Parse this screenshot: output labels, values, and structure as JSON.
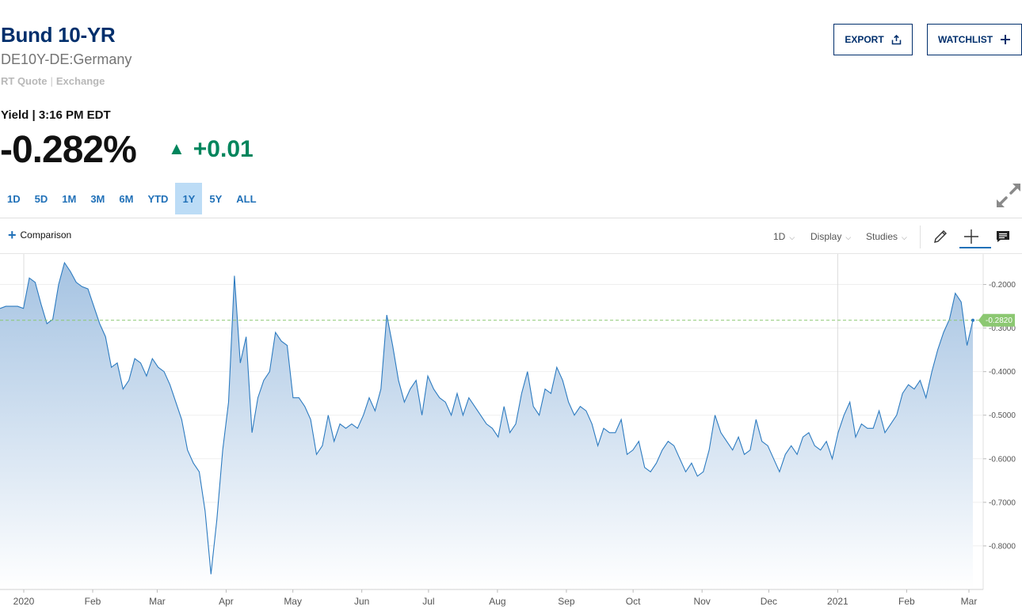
{
  "header": {
    "title": "Bund 10-YR",
    "symbol": "DE10Y-DE:Germany",
    "quote_type": "RT Quote",
    "quote_separator": "|",
    "quote_exchange": "Exchange",
    "yield_line": "Yield | 3:16 PM EDT",
    "price": "-0.282%",
    "change": "+0.01",
    "change_direction": "up",
    "change_color": "#00855c",
    "title_color": "#002f6c"
  },
  "actions": {
    "export_label": "EXPORT",
    "export_icon": "share-upload-icon",
    "watchlist_label": "WATCHLIST",
    "watchlist_icon": "plus-icon"
  },
  "range_tabs": [
    "1D",
    "5D",
    "1M",
    "3M",
    "6M",
    "YTD",
    "1Y",
    "5Y",
    "ALL"
  ],
  "active_range": "1Y",
  "toolbar": {
    "comparison_label": "Comparison",
    "interval_label": "1D",
    "display_label": "Display",
    "studies_label": "Studies",
    "tools": [
      "pencil-icon",
      "crosshair-icon",
      "comment-icon"
    ],
    "active_tool": "crosshair-icon",
    "expand_icon": "expand-icon"
  },
  "chart_data": {
    "type": "area",
    "series": [
      {
        "values": [
          -0.255,
          -0.25,
          -0.25,
          -0.25,
          -0.255,
          -0.185,
          -0.195,
          -0.245,
          -0.29,
          -0.28,
          -0.2,
          -0.15,
          -0.17,
          -0.195,
          -0.205,
          -0.21,
          -0.25,
          -0.29,
          -0.32,
          -0.39,
          -0.38,
          -0.44,
          -0.42,
          -0.37,
          -0.38,
          -0.41,
          -0.37,
          -0.39,
          -0.4,
          -0.43,
          -0.47,
          -0.51,
          -0.58,
          -0.61,
          -0.63,
          -0.72,
          -0.865,
          -0.74,
          -0.58,
          -0.47,
          -0.18,
          -0.38,
          -0.32,
          -0.54,
          -0.46,
          -0.42,
          -0.4,
          -0.31,
          -0.33,
          -0.34,
          -0.46,
          -0.46,
          -0.48,
          -0.51,
          -0.59,
          -0.57,
          -0.5,
          -0.56,
          -0.52,
          -0.53,
          -0.52,
          -0.53,
          -0.5,
          -0.46,
          -0.49,
          -0.44,
          -0.27,
          -0.34,
          -0.42,
          -0.47,
          -0.44,
          -0.42,
          -0.5,
          -0.41,
          -0.44,
          -0.46,
          -0.47,
          -0.5,
          -0.45,
          -0.5,
          -0.46,
          -0.48,
          -0.5,
          -0.52,
          -0.53,
          -0.55,
          -0.48,
          -0.54,
          -0.52,
          -0.45,
          -0.4,
          -0.48,
          -0.5,
          -0.44,
          -0.45,
          -0.39,
          -0.42,
          -0.47,
          -0.5,
          -0.48,
          -0.49,
          -0.52,
          -0.57,
          -0.53,
          -0.54,
          -0.54,
          -0.51,
          -0.59,
          -0.58,
          -0.56,
          -0.62,
          -0.63,
          -0.61,
          -0.58,
          -0.56,
          -0.57,
          -0.6,
          -0.63,
          -0.61,
          -0.64,
          -0.63,
          -0.58,
          -0.5,
          -0.54,
          -0.56,
          -0.58,
          -0.55,
          -0.59,
          -0.58,
          -0.51,
          -0.56,
          -0.57,
          -0.6,
          -0.63,
          -0.59,
          -0.57,
          -0.59,
          -0.55,
          -0.54,
          -0.57,
          -0.58,
          -0.56,
          -0.6,
          -0.54,
          -0.5,
          -0.47,
          -0.55,
          -0.52,
          -0.53,
          -0.53,
          -0.49,
          -0.54,
          -0.52,
          -0.5,
          -0.45,
          -0.43,
          -0.44,
          -0.42,
          -0.46,
          -0.4,
          -0.35,
          -0.31,
          -0.28,
          -0.22,
          -0.24,
          -0.34,
          -0.282
        ]
      }
    ],
    "x_tick_labels": [
      "2020",
      "Feb",
      "Mar",
      "Apr",
      "May",
      "Jun",
      "Jul",
      "Aug",
      "Sep",
      "Oct",
      "Nov",
      "Dec",
      "2021",
      "Feb",
      "Mar"
    ],
    "y_tick_labels": [
      "-0.2000",
      "-0.3000",
      "-0.4000",
      "-0.5000",
      "-0.6000",
      "-0.7000",
      "-0.8000"
    ],
    "ylim": [
      -0.9,
      -0.13
    ],
    "last_value_label": "-0.2820",
    "reference_line_value": -0.282,
    "line_color": "#2d7bc0",
    "fill_color_top": "#a5c3e2",
    "fill_color_bottom": "#ffffff",
    "reference_color": "#8cc872",
    "label_color": "#8cc872",
    "grid": true
  }
}
